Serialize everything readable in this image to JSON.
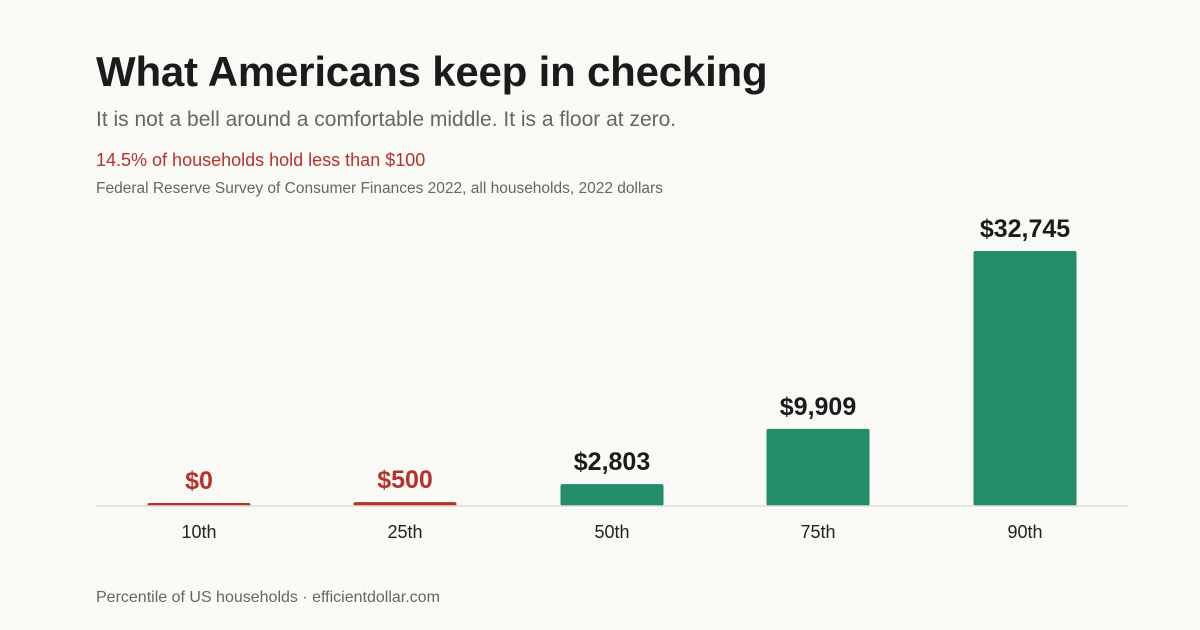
{
  "header": {
    "title": "What Americans keep in checking",
    "subtitle": "It is not a bell around a comfortable middle. It is a floor at zero.",
    "highlight": "14.5% of households hold less than $100",
    "source": "Federal Reserve Survey of Consumer Finances 2022, all households, 2022 dollars"
  },
  "footer": {
    "text": "Percentile of US households · efficientdollar.com"
  },
  "colors": {
    "low": "#b5332b",
    "high": "#238c6b",
    "baseline": "#dddddd",
    "value_text": "#1b1b1b"
  },
  "chart_data": {
    "type": "bar",
    "categories": [
      "10th",
      "25th",
      "50th",
      "75th",
      "90th"
    ],
    "values": [
      0,
      500,
      2803,
      9909,
      32745
    ],
    "value_labels": [
      "$0",
      "$500",
      "$2,803",
      "$9,909",
      "$32,745"
    ],
    "highlighted_low": [
      true,
      true,
      false,
      false,
      false
    ],
    "title": "What Americans keep in checking",
    "subtitle": "It is not a bell around a comfortable middle. It is a floor at zero.",
    "xlabel": "Percentile of US households",
    "ylabel": "",
    "ylim": [
      0,
      32745
    ],
    "grid": false,
    "legend": "none"
  }
}
